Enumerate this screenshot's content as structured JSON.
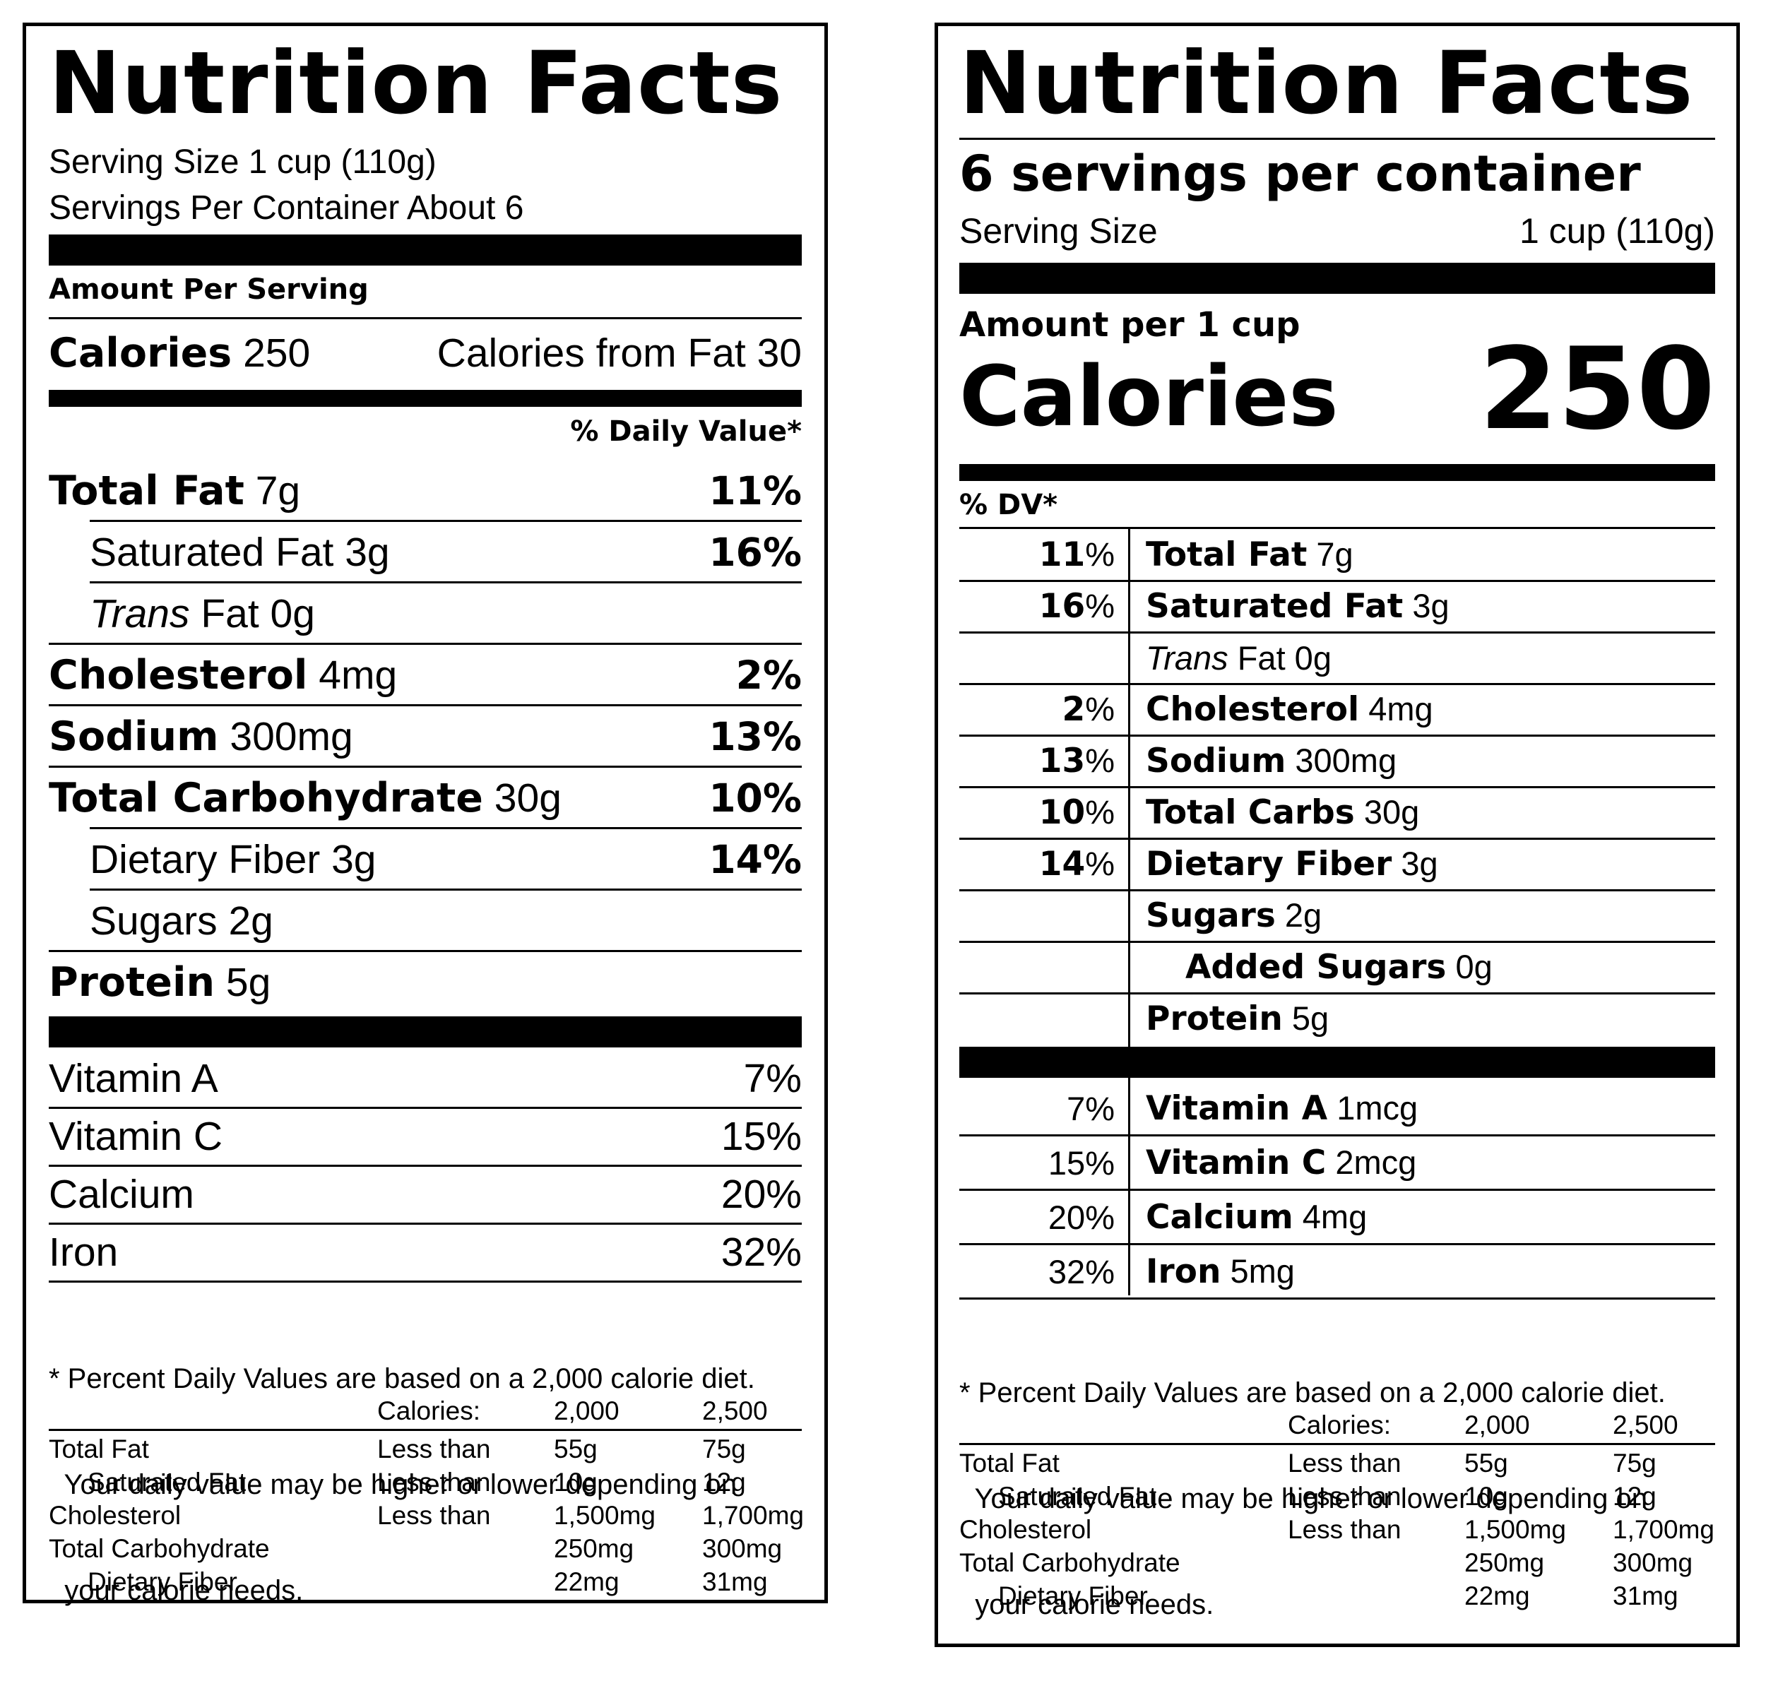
{
  "left": {
    "title": "Nutrition Facts",
    "serving_size": "Serving Size 1 cup (110g)",
    "servings_per_container": "Servings Per Container About 6",
    "amount_per_serving": "Amount Per Serving",
    "calories_label": "Calories",
    "calories_value": "250",
    "calories_from_fat": "Calories from Fat 30",
    "daily_value_header": "% Daily Value*",
    "nutrients": [
      {
        "name": "Total Fat",
        "amount": "7g",
        "pct": "11%"
      },
      {
        "name": "Saturated Fat 3g",
        "amount": "",
        "pct": "16%"
      },
      {
        "name": "Trans",
        "amount": " Fat 0g",
        "pct": ""
      },
      {
        "name": "Cholesterol",
        "amount": "4mg",
        "pct": "2%"
      },
      {
        "name": "Sodium",
        "amount": "300mg",
        "pct": "13%"
      },
      {
        "name": "Total Carbohydrate",
        "amount": "30g",
        "pct": "10%"
      },
      {
        "name": "Dietary Fiber 3g",
        "amount": "",
        "pct": "14%"
      },
      {
        "name": "Sugars 2g",
        "amount": "",
        "pct": ""
      },
      {
        "name": "Protein",
        "amount": "5g",
        "pct": ""
      }
    ],
    "vitamins": [
      {
        "name": "Vitamin A",
        "pct": "7%"
      },
      {
        "name": "Vitamin C",
        "pct": "15%"
      },
      {
        "name": "Calcium",
        "pct": "20%"
      },
      {
        "name": "Iron",
        "pct": "32%"
      }
    ],
    "footnote_lines": [
      "* Percent Daily Values are based on a 2,000 calorie diet.",
      "  Your daily value may be higher or lower depending on",
      "  your calorie needs."
    ]
  },
  "right": {
    "title": "Nutrition Facts",
    "servings_per_container": "6 servings per container",
    "serving_size_label": "Serving Size",
    "serving_size_value": "1 cup (110g)",
    "amount_per": "Amount per 1 cup",
    "calories_label": "Calories",
    "calories_value": "250",
    "dv_header": "% DV*",
    "nutrients": [
      {
        "pct_num": "11",
        "pct_sign": "%",
        "name": "Total Fat",
        "amount": "7g"
      },
      {
        "pct_num": "16",
        "pct_sign": "%",
        "name": "Saturated Fat",
        "amount": "3g"
      },
      {
        "pct_num": "",
        "pct_sign": "",
        "name": "Trans",
        "amount": " Fat 0g"
      },
      {
        "pct_num": "2",
        "pct_sign": "%",
        "name": "Cholesterol",
        "amount": "4mg"
      },
      {
        "pct_num": "13",
        "pct_sign": "%",
        "name": "Sodium",
        "amount": "300mg"
      },
      {
        "pct_num": "10",
        "pct_sign": "%",
        "name": "Total Carbs",
        "amount": "30g"
      },
      {
        "pct_num": "14",
        "pct_sign": "%",
        "name": "Dietary Fiber",
        "amount": "3g"
      },
      {
        "pct_num": "",
        "pct_sign": "",
        "name": "Sugars",
        "amount": "2g"
      },
      {
        "pct_num": "",
        "pct_sign": "",
        "name": "Added Sugars",
        "amount": "0g"
      },
      {
        "pct_num": "",
        "pct_sign": "",
        "name": "Protein",
        "amount": "5g"
      }
    ],
    "vitamins": [
      {
        "pct": "7%",
        "name": "Vitamin A",
        "amount": "1mcg"
      },
      {
        "pct": "15%",
        "name": "Vitamin C",
        "amount": "2mcg"
      },
      {
        "pct": "20%",
        "name": "Calcium",
        "amount": "4mg"
      },
      {
        "pct": "32%",
        "name": "Iron",
        "amount": "5mg"
      }
    ],
    "footnote_lines": [
      "* Percent Daily Values are based on a 2,000 calorie diet.",
      "  Your daily value may be higher or lower depending on",
      "  your calorie needs."
    ]
  },
  "dv_table": {
    "header": [
      "",
      "Calories:",
      "2,000",
      "2,500"
    ],
    "rows": [
      [
        "Total Fat",
        "Less than",
        "55g",
        "75g"
      ],
      [
        "Saturated Fat",
        "Less than",
        "10g",
        "12g"
      ],
      [
        "Cholesterol",
        "Less than",
        "1,500mg",
        "1,700mg"
      ],
      [
        "Total Carbohydrate",
        "",
        "250mg",
        "300mg"
      ],
      [
        "Dietary Fiber",
        "",
        "22mg",
        "31mg"
      ]
    ]
  }
}
